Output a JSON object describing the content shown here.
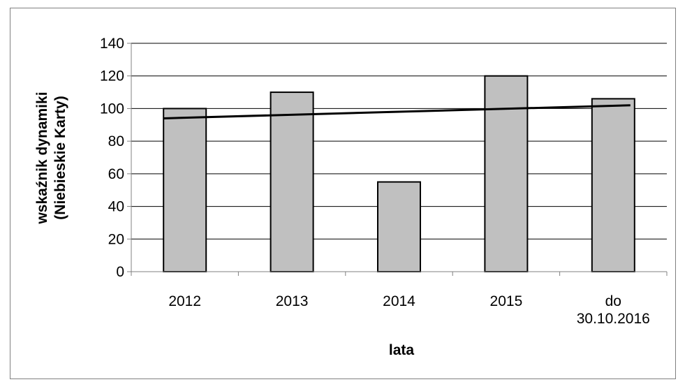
{
  "chart_data": {
    "type": "bar",
    "categories": [
      [
        "2012"
      ],
      [
        "2013"
      ],
      [
        "2014"
      ],
      [
        "2015"
      ],
      [
        "do",
        "30.10.2016"
      ]
    ],
    "values": [
      100,
      110,
      55,
      120,
      106
    ],
    "trendline": {
      "type": "linear",
      "start": 94,
      "end": 102
    },
    "title": "",
    "xlabel": "lata",
    "ylabel": [
      "wskaźnik dynamiki",
      "(Niebieskie Karty)"
    ],
    "ylim": [
      0,
      140
    ],
    "yticks": [
      0,
      20,
      40,
      60,
      80,
      100,
      120,
      140
    ],
    "grid": true,
    "legend": "none",
    "colors": {
      "bar_fill": "#c0c0c0",
      "bar_stroke": "#000000",
      "grid": "#000000",
      "axis": "#808080",
      "trendline": "#000000"
    }
  }
}
